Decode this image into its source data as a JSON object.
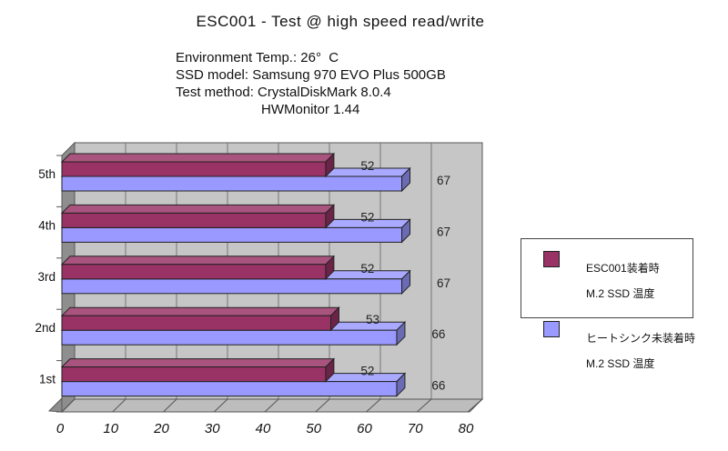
{
  "title": "ESC001 - Test @ high speed read/write",
  "subtitle_lines": [
    "Environment Temp.: 26°  C",
    "SSD model: Samsung 970 EVO Plus 500GB",
    "Test method: CrystalDiskMark 8.0.4",
    "HWMonitor 1.44"
  ],
  "chart_data": {
    "type": "bar",
    "orientation": "horizontal",
    "style": "3d",
    "title": "ESC001 - Test @ high speed read/write",
    "categories_order": "top-to-bottom",
    "categories": [
      "5th",
      "4th",
      "3rd",
      "2nd",
      "1st"
    ],
    "series": [
      {
        "name": "ESC001装着時 M.2 SSD 温度",
        "color": "#993366",
        "values": [
          52,
          52,
          52,
          53,
          52
        ]
      },
      {
        "name": "ヒートシンク未装着時 M.2 SSD 温度",
        "color": "#9999ff",
        "values": [
          67,
          67,
          67,
          66,
          66
        ]
      }
    ],
    "xlabel": "",
    "ylabel": "",
    "xlim": [
      0,
      80
    ],
    "xticks": [
      0,
      10,
      20,
      30,
      40,
      50,
      60,
      70,
      80
    ],
    "grid": true,
    "data_labels": true,
    "legend_position": "right",
    "plot_bg_color": "#c6c6c6",
    "gridline_color": "#777777",
    "wall_side_color": "#8e8e8e",
    "floor_color": "#bdbdbd"
  },
  "legend": {
    "items": [
      {
        "lines": [
          "ESC001装着時",
          "M.2 SSD 温度"
        ],
        "color": "#993366"
      },
      {
        "lines": [
          "ヒートシンク未装着時",
          "M.2 SSD 温度"
        ],
        "color": "#9999ff"
      }
    ]
  }
}
